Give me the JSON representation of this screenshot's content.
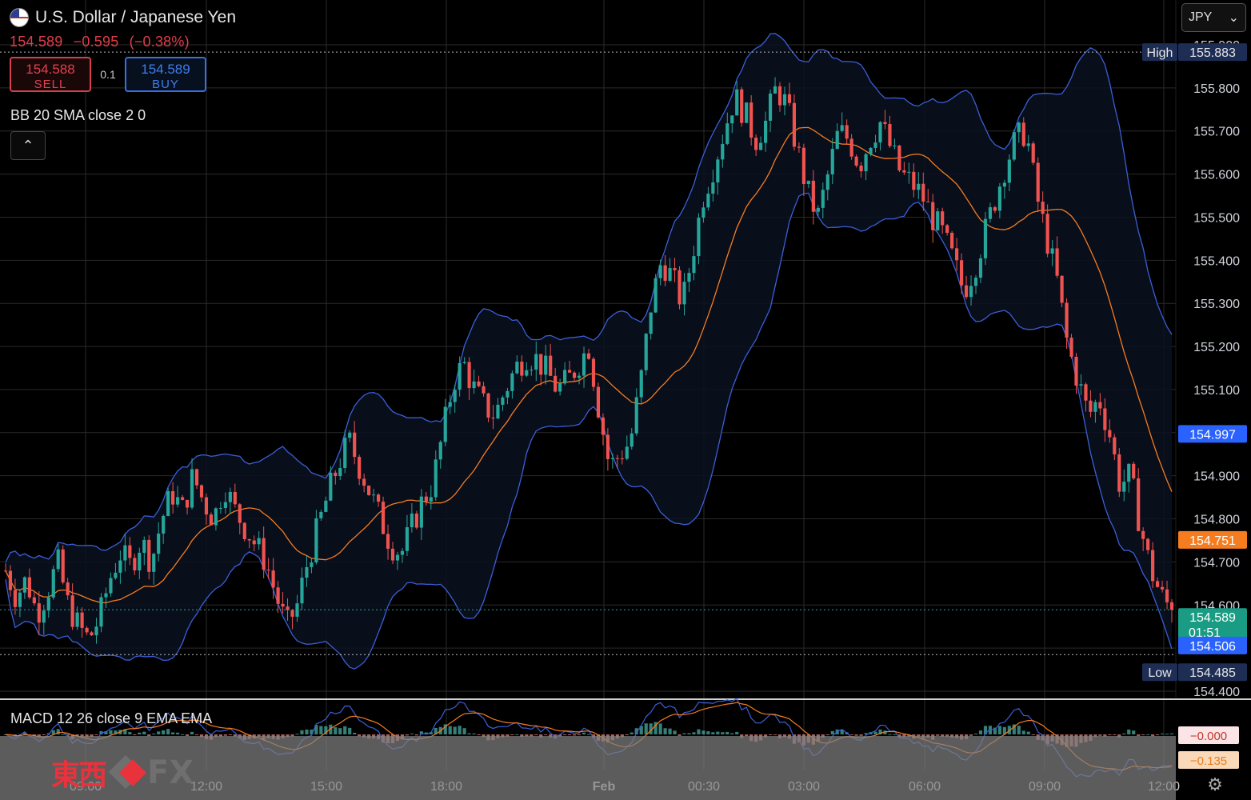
{
  "header": {
    "title": "U.S. Dollar / Japanese Yen",
    "last_price": "154.589",
    "change": "−0.595",
    "change_pct": "(−0.38%)",
    "sell_price": "154.588",
    "sell_label": "SELL",
    "buy_price": "154.589",
    "buy_label": "BUY",
    "quantity": "0.1"
  },
  "indicators": {
    "bb_label": "BB 20 SMA close 2 0",
    "macd_label": "MACD 12 26 close 9 EMA EMA"
  },
  "currency_selector": {
    "value": "JPY"
  },
  "price_scale": {
    "ticks": [
      "155.900",
      "155.800",
      "155.700",
      "155.600",
      "155.500",
      "155.400",
      "155.300",
      "155.200",
      "155.100",
      "155.000",
      "154.900",
      "154.800",
      "154.700",
      "154.600",
      "154.500",
      "154.400"
    ],
    "badges": [
      {
        "label": "High",
        "value": "155.883"
      },
      {
        "label": "",
        "value": "154.997"
      },
      {
        "label": "",
        "value": "154.751"
      },
      {
        "label": "",
        "value": "154.589",
        "extra": "01:51"
      },
      {
        "label": "",
        "value": "154.506"
      },
      {
        "label": "Low",
        "value": "154.485"
      }
    ]
  },
  "macd_scale": {
    "ticks": [
      "−0.000",
      "−0.135"
    ]
  },
  "time_axis": {
    "ticks": [
      "09:00",
      "12:00",
      "15:00",
      "18:00",
      "Feb",
      "00:30",
      "03:00",
      "06:00",
      "09:00",
      "12:00"
    ]
  },
  "colors": {
    "up": "#26a69a",
    "down": "#ef5350",
    "bb_band": "#3a5fd9",
    "bb_basis": "#f57c1f",
    "macd": "#3a5fd9",
    "signal": "#f57c1f",
    "grid": "#2a2a2a"
  },
  "chart_data": {
    "type": "candlestick",
    "symbol": "USDJPY",
    "ylim": [
      154.4,
      155.9
    ],
    "price_path": [
      154.68,
      154.62,
      154.66,
      154.58,
      154.63,
      154.7,
      154.6,
      154.55,
      154.52,
      154.57,
      154.66,
      154.72,
      154.69,
      154.75,
      154.7,
      154.8,
      154.86,
      154.82,
      154.9,
      154.84,
      154.8,
      154.88,
      154.82,
      154.78,
      154.74,
      154.7,
      154.62,
      154.55,
      154.6,
      154.7,
      154.78,
      154.86,
      154.93,
      154.98,
      154.92,
      154.86,
      154.8,
      154.74,
      154.72,
      154.78,
      154.84,
      154.88,
      155.0,
      155.12,
      155.16,
      155.1,
      155.06,
      155.04,
      155.1,
      155.15,
      155.18,
      155.17,
      155.14,
      155.1,
      155.12,
      155.16,
      155.2,
      155.05,
      154.92,
      154.95,
      154.98,
      155.12,
      155.3,
      155.4,
      155.36,
      155.3,
      155.42,
      155.55,
      155.62,
      155.7,
      155.78,
      155.74,
      155.68,
      155.72,
      155.8,
      155.76,
      155.66,
      155.56,
      155.5,
      155.6,
      155.7,
      155.68,
      155.62,
      155.68,
      155.72,
      155.66,
      155.6,
      155.58,
      155.55,
      155.5,
      155.46,
      155.4,
      155.33,
      155.38,
      155.46,
      155.54,
      155.62,
      155.68,
      155.7,
      155.55,
      155.45,
      155.35,
      155.2,
      155.12,
      155.04,
      155.08,
      155.0,
      154.88,
      154.9,
      154.78,
      154.68,
      154.62,
      154.589
    ],
    "high": 155.883,
    "low": 154.485,
    "last": 154.589,
    "bb_upper_current": 154.997,
    "bb_basis_current": 154.751,
    "bb_lower_current": 154.506,
    "macd": {
      "last": -0.0,
      "signal": -0.135
    }
  }
}
